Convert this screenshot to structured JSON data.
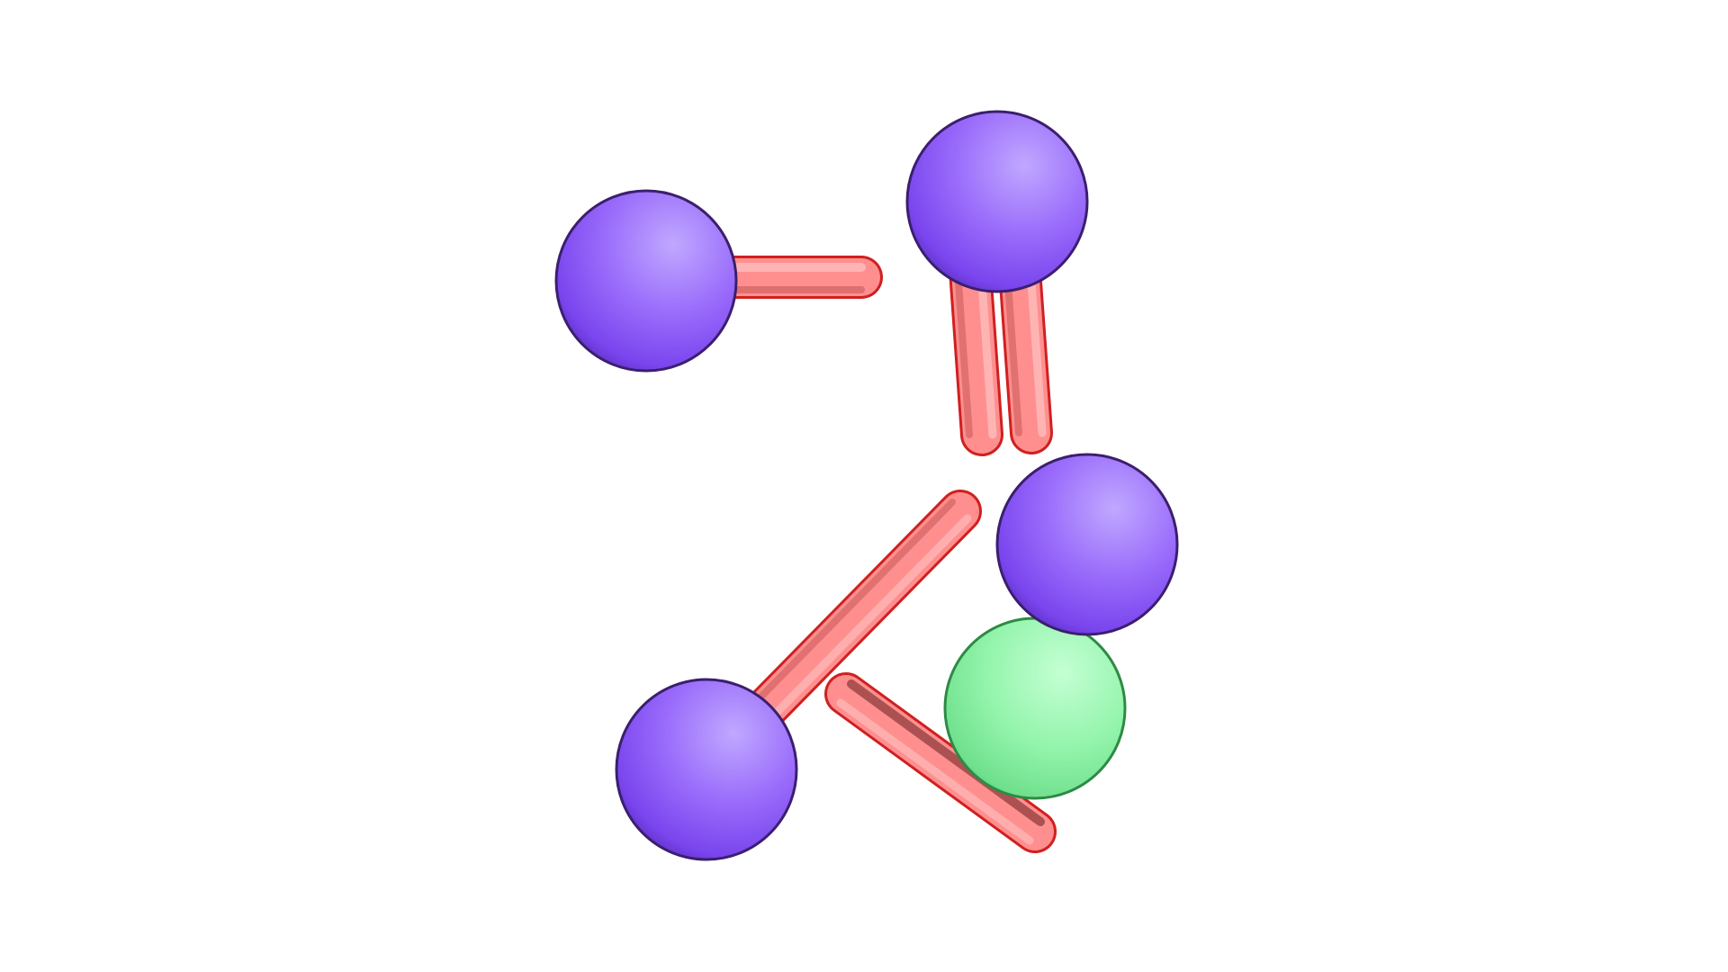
{
  "scene": {
    "background": "#ffffff",
    "colors": {
      "atom_purple": "#8f5cf7",
      "atom_purple_highlight": "#c0a8ff",
      "atom_purple_shadow": "#5a2fc0",
      "atom_purple_outline": "#3b1f6e",
      "atom_green": "#8cf5a5",
      "atom_green_highlight": "#c4ffd4",
      "atom_green_shadow": "#4fcf72",
      "atom_green_outline": "#2e8a45",
      "bond_fill": "#ff8f8f",
      "bond_highlight": "#ffc4c4",
      "bond_shadow": "#c45555",
      "bond_outline": "#d02020"
    },
    "atoms": [
      {
        "name": "atom-purple-1",
        "element": "purple"
      },
      {
        "name": "atom-purple-2",
        "element": "purple"
      },
      {
        "name": "atom-purple-3",
        "element": "purple"
      },
      {
        "name": "atom-purple-4",
        "element": "purple"
      },
      {
        "name": "atom-green-1",
        "element": "green"
      }
    ],
    "bonds": [
      {
        "name": "bond-1"
      },
      {
        "name": "bond-2"
      },
      {
        "name": "bond-3"
      },
      {
        "name": "bond-4"
      },
      {
        "name": "bond-5"
      }
    ]
  }
}
